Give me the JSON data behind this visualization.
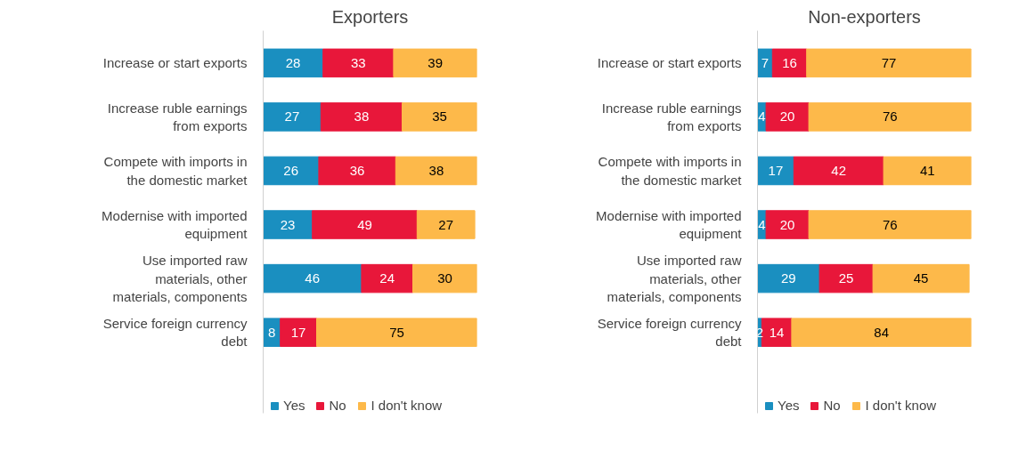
{
  "chart_data": [
    {
      "type": "bar",
      "orientation": "horizontal",
      "stacked": true,
      "title": "Exporters",
      "categories": [
        "Increase or start exports",
        "Increase ruble earnings from exports",
        "Compete with imports in the domestic market",
        "Modernise with imported equipment",
        "Use imported raw materials, other materials, components",
        "Service foreign currency debt"
      ],
      "xlim": [
        0,
        100
      ],
      "tick_labels": "y",
      "data_labels": true,
      "grid": false,
      "legend": "bottom",
      "series": [
        {
          "name": "Yes",
          "color": "#1a8fc0",
          "values": [
            28,
            27,
            26,
            23,
            46,
            8
          ]
        },
        {
          "name": "No",
          "color": "#e8173a",
          "values": [
            33,
            38,
            36,
            49,
            24,
            17
          ]
        },
        {
          "name": "I don't know",
          "color": "#fdb94a",
          "values": [
            39,
            35,
            38,
            27,
            30,
            75
          ]
        }
      ]
    },
    {
      "type": "bar",
      "orientation": "horizontal",
      "stacked": true,
      "title": "Non-exporters",
      "categories": [
        "Increase or start exports",
        "Increase ruble earnings from exports",
        "Compete with imports in the domestic market",
        "Modernise with imported equipment",
        "Use imported raw materials, other materials, components",
        "Service foreign currency debt"
      ],
      "xlim": [
        0,
        100
      ],
      "tick_labels": "y",
      "data_labels": true,
      "grid": false,
      "legend": "bottom",
      "series": [
        {
          "name": "Yes",
          "color": "#1a8fc0",
          "values": [
            7,
            4,
            17,
            4,
            29,
            2
          ]
        },
        {
          "name": "No",
          "color": "#e8173a",
          "values": [
            16,
            20,
            42,
            20,
            25,
            14
          ]
        },
        {
          "name": "I don't know",
          "color": "#fdb94a",
          "values": [
            77,
            76,
            41,
            76,
            45,
            84
          ]
        }
      ]
    }
  ]
}
